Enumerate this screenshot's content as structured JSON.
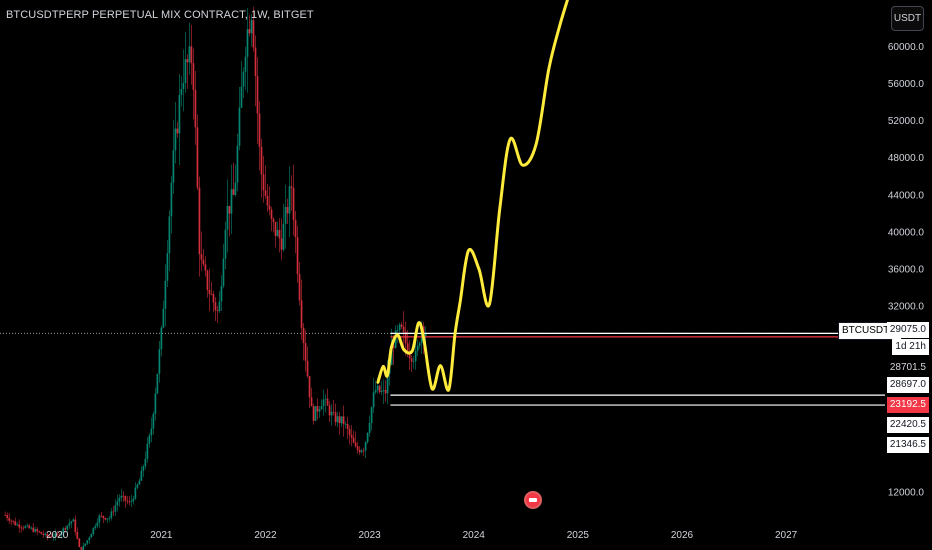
{
  "header": {
    "title": "BTCUSDTPERP PERPETUAL MIX CONTRACT, 1W, BITGET",
    "currency_button": "USDT"
  },
  "symbol_tag": "BTCUSDT.P",
  "countdown": "1d 21h",
  "price_labels": [
    {
      "value": "29075.0",
      "style": "white"
    },
    {
      "value": "1d 21h",
      "style": "white"
    },
    {
      "value": "28701.5",
      "style": "plain"
    },
    {
      "value": "28697.0",
      "style": "white"
    },
    {
      "value": "23192.5",
      "style": "red"
    },
    {
      "value": "22420.5",
      "style": "white"
    },
    {
      "value": "21346.5",
      "style": "white"
    }
  ],
  "events_icon": "calendar-flag-icon",
  "colors": {
    "background": "#000000",
    "up": "#089981",
    "down": "#f23645",
    "projection": "#ffeb3b",
    "axis_text": "#d1d4dc"
  },
  "chart_data": {
    "type": "candlestick",
    "title": "BTCUSDTPERP PERPETUAL MIX CONTRACT, 1W, BITGET",
    "xlabel": "",
    "ylabel": "",
    "x_ticks": [
      "2020",
      "2021",
      "2022",
      "2023",
      "2024",
      "2025",
      "2026",
      "2027"
    ],
    "y_ticks": [
      "12000.0",
      "32000.0",
      "36000.0",
      "40000.0",
      "44000.0",
      "48000.0",
      "52000.0",
      "56000.0",
      "60000.0"
    ],
    "ylim": [
      9500,
      65000
    ],
    "xlim": [
      2019.45,
      2027.95
    ],
    "grid": false,
    "price_series": [
      [
        2019.5,
        9500
      ],
      [
        2019.6,
        8500
      ],
      [
        2019.75,
        8000
      ],
      [
        2019.9,
        7200
      ],
      [
        2020.0,
        7300
      ],
      [
        2020.15,
        9000
      ],
      [
        2020.22,
        5500
      ],
      [
        2020.3,
        7000
      ],
      [
        2020.4,
        9300
      ],
      [
        2020.5,
        9200
      ],
      [
        2020.6,
        11500
      ],
      [
        2020.7,
        10700
      ],
      [
        2020.8,
        13500
      ],
      [
        2020.9,
        18500
      ],
      [
        2021.0,
        29000
      ],
      [
        2021.1,
        46000
      ],
      [
        2021.2,
        57000
      ],
      [
        2021.3,
        59000
      ],
      [
        2021.37,
        37000
      ],
      [
        2021.45,
        34000
      ],
      [
        2021.55,
        31000
      ],
      [
        2021.62,
        42000
      ],
      [
        2021.7,
        44000
      ],
      [
        2021.8,
        60000
      ],
      [
        2021.87,
        64500
      ],
      [
        2021.95,
        47000
      ],
      [
        2022.05,
        41000
      ],
      [
        2022.15,
        39000
      ],
      [
        2022.25,
        45000
      ],
      [
        2022.35,
        30000
      ],
      [
        2022.45,
        20000
      ],
      [
        2022.55,
        22000
      ],
      [
        2022.65,
        20000
      ],
      [
        2022.75,
        19500
      ],
      [
        2022.87,
        16500
      ],
      [
        2022.95,
        16800
      ],
      [
        2023.05,
        23000
      ],
      [
        2023.15,
        22500
      ],
      [
        2023.22,
        28000
      ],
      [
        2023.3,
        29500
      ],
      [
        2023.38,
        27000
      ],
      [
        2023.45,
        26500
      ],
      [
        2023.5,
        30000
      ],
      [
        2023.55,
        29075
      ]
    ],
    "projection_series": [
      [
        2023.08,
        23800
      ],
      [
        2023.13,
        25500
      ],
      [
        2023.17,
        24500
      ],
      [
        2023.21,
        27600
      ],
      [
        2023.27,
        28900
      ],
      [
        2023.33,
        27300
      ],
      [
        2023.41,
        27200
      ],
      [
        2023.47,
        30200
      ],
      [
        2023.52,
        28500
      ],
      [
        2023.6,
        23100
      ],
      [
        2023.68,
        25600
      ],
      [
        2023.76,
        23000
      ],
      [
        2023.82,
        29000
      ],
      [
        2023.87,
        32500
      ],
      [
        2023.95,
        38000
      ],
      [
        2024.05,
        36000
      ],
      [
        2024.15,
        32200
      ],
      [
        2024.25,
        42500
      ],
      [
        2024.35,
        50000
      ],
      [
        2024.47,
        47200
      ],
      [
        2024.6,
        49500
      ],
      [
        2024.72,
        57500
      ],
      [
        2024.82,
        62000
      ],
      [
        2024.9,
        65000
      ]
    ],
    "horizontal_levels": [
      {
        "value": 29075.0,
        "color": "#ffffff",
        "style": "solid"
      },
      {
        "value": 28697.0,
        "color": "#f23645",
        "style": "solid"
      },
      {
        "value": 22420.5,
        "color": "#ffffff",
        "style": "solid"
      },
      {
        "value": 21346.5,
        "color": "#ffffff",
        "style": "solid"
      }
    ],
    "current_price_dotted": 29075.0
  }
}
